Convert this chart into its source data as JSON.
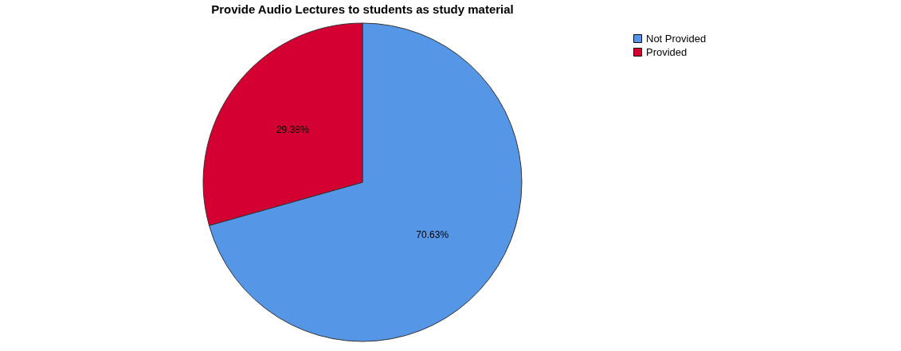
{
  "chart_data": {
    "type": "pie",
    "title": "Provide Audio Lectures to students as study material",
    "categories": [
      "Not Provided",
      "Provided"
    ],
    "values": [
      70.63,
      29.38
    ],
    "colors": [
      "#5596e6",
      "#d50032"
    ],
    "value_labels": [
      "70.63%",
      "29.38%"
    ],
    "legend": "top right"
  }
}
